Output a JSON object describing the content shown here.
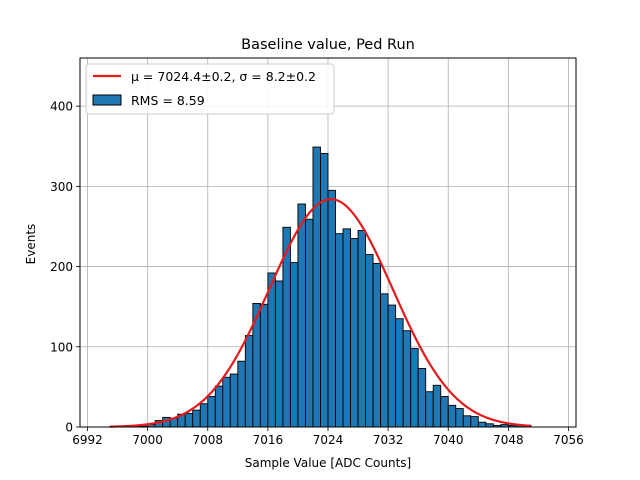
{
  "chart_data": {
    "type": "bar",
    "title": "Baseline value, Ped Run",
    "xlabel": "Sample Value [ADC Counts]",
    "ylabel": "Events",
    "xlim": [
      6991,
      7057
    ],
    "ylim": [
      0,
      460
    ],
    "xticks": [
      "6992",
      "7000",
      "7008",
      "7016",
      "7024",
      "7032",
      "7040",
      "7048",
      "7056"
    ],
    "yticks": [
      "0",
      "100",
      "200",
      "300",
      "400"
    ],
    "grid": true,
    "legend_position": "top-left",
    "bar_color": "#1f77b4",
    "fit_color": "#e41a1c",
    "bins": {
      "edges_start": 6995,
      "bin_width": 1,
      "counts": [
        1,
        1,
        1,
        1,
        1,
        3,
        8,
        12,
        11,
        16,
        17,
        21,
        29,
        38,
        51,
        62,
        66,
        82,
        114,
        154,
        153,
        192,
        182,
        249,
        205,
        278,
        259,
        349,
        341,
        295,
        241,
        247,
        235,
        245,
        215,
        204,
        166,
        152,
        135,
        120,
        98,
        73,
        44,
        52,
        38,
        27,
        23,
        14,
        13,
        6,
        4,
        2,
        3,
        2,
        2,
        2
      ]
    },
    "fit": {
      "type": "gaussian",
      "mean": 7024.4,
      "sigma": 8.2,
      "peak": 284
    },
    "series": [
      {
        "name": "μ = 7024.4±0.2, σ = 8.2±0.2",
        "kind": "line"
      },
      {
        "name": "RMS = 8.59",
        "kind": "bar"
      }
    ]
  }
}
